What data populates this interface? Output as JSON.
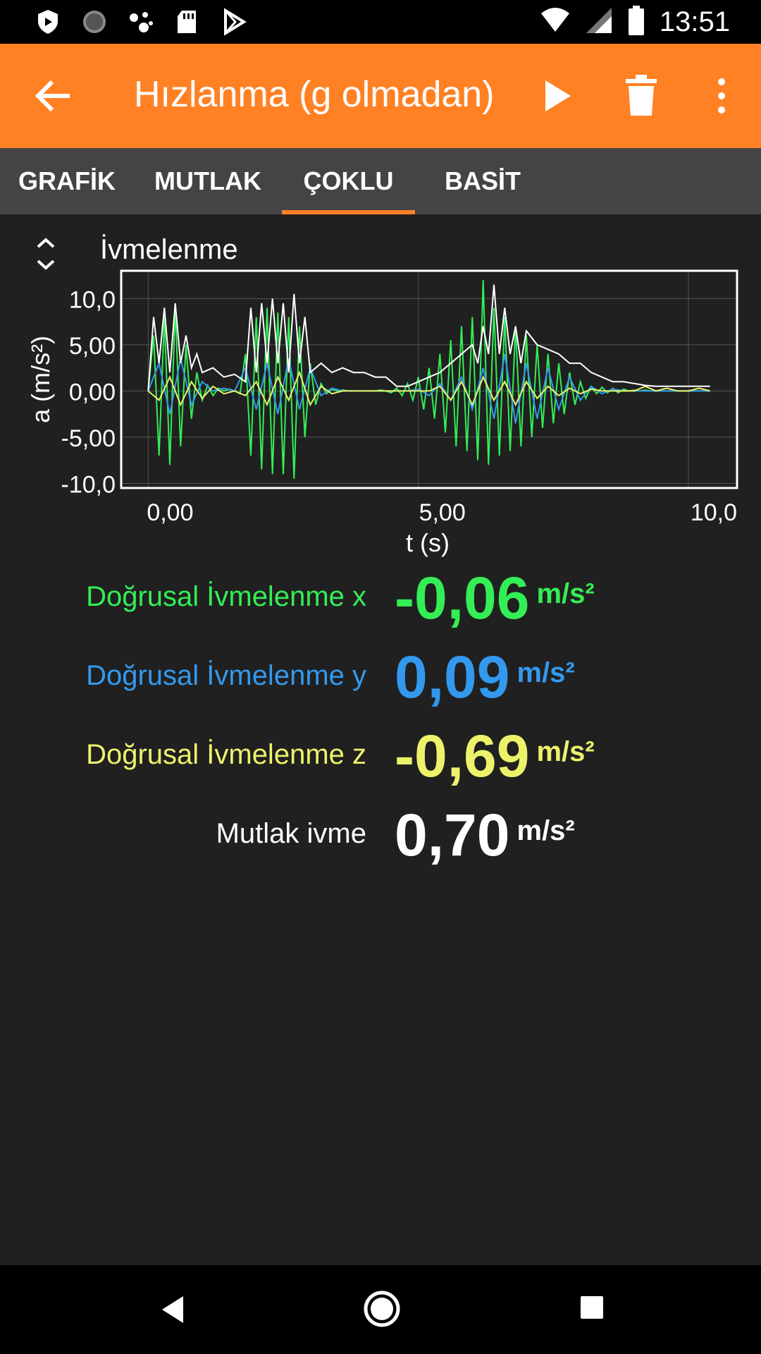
{
  "status": {
    "time": "13:51",
    "icons": [
      "shield-icon",
      "circle-loading-icon",
      "assistant-dots-icon",
      "sd-card-icon",
      "play-store-icon",
      "wifi-icon",
      "signal-icon",
      "battery-icon"
    ]
  },
  "appbar": {
    "title": "Hızlanma (g olmadan)",
    "icons": [
      "back-arrow-icon",
      "play-icon",
      "trash-icon",
      "more-vert-icon"
    ]
  },
  "tabs": [
    {
      "label": "GRAFİK",
      "active": false
    },
    {
      "label": "MUTLAK",
      "active": false
    },
    {
      "label": "ÇOKLU",
      "active": true
    },
    {
      "label": "BASİT",
      "active": false
    }
  ],
  "chart": {
    "title": "İvmelenme"
  },
  "chart_data": {
    "type": "line",
    "title": "İvmelenme",
    "xlabel": "t (s)",
    "ylabel": "a (m/s²)",
    "xlim": [
      -0.5,
      10.9
    ],
    "ylim": [
      -10.5,
      13
    ],
    "x_ticks": [
      0,
      5,
      10
    ],
    "x_tick_labels": [
      "0,00",
      "5,00",
      "10,0"
    ],
    "y_ticks": [
      10,
      5,
      0,
      -5,
      -10
    ],
    "y_tick_labels": [
      "10,0",
      "5,00",
      "0,00",
      "-5,00",
      "-10,0"
    ],
    "grid": true,
    "series": [
      {
        "name": "Doğrusal İvmelenme x",
        "color": "#33ee55",
        "x": [
          0.0,
          0.1,
          0.2,
          0.3,
          0.4,
          0.5,
          0.6,
          0.7,
          0.8,
          0.9,
          1.0,
          1.1,
          1.2,
          1.3,
          1.4,
          1.5,
          1.6,
          1.7,
          1.8,
          1.9,
          2.0,
          2.1,
          2.2,
          2.3,
          2.4,
          2.5,
          2.6,
          2.7,
          2.8,
          2.9,
          3.0,
          3.1,
          3.2,
          3.3,
          3.4,
          3.5,
          3.6,
          3.7,
          3.8,
          3.9,
          4.0,
          4.1,
          4.2,
          4.3,
          4.4,
          4.5,
          4.6,
          4.7,
          4.8,
          4.9,
          5.0,
          5.1,
          5.2,
          5.3,
          5.4,
          5.5,
          5.6,
          5.7,
          5.8,
          5.9,
          6.0,
          6.1,
          6.2,
          6.3,
          6.4,
          6.5,
          6.6,
          6.7,
          6.8,
          6.9,
          7.0,
          7.1,
          7.2,
          7.3,
          7.4,
          7.5,
          7.6,
          7.7,
          7.8,
          7.9,
          8.0,
          8.1,
          8.2,
          8.3,
          8.4,
          8.5,
          8.6,
          8.7,
          8.8,
          8.9,
          9.0,
          9.1,
          9.2,
          9.3,
          9.4,
          9.5,
          9.6,
          9.7,
          9.8,
          9.9,
          10.0,
          10.1,
          10.2,
          10.3,
          10.4
        ],
        "y": [
          0.0,
          6.0,
          -7.0,
          8.0,
          -8.0,
          9.0,
          -6.0,
          5.0,
          -3.0,
          2.0,
          -1.0,
          0.6,
          -0.5,
          0.3,
          0.0,
          0.2,
          0.0,
          -0.3,
          4.0,
          -7.0,
          8.0,
          -8.5,
          9.0,
          -9.0,
          8.5,
          -9.0,
          8.0,
          -9.5,
          7.0,
          -5.0,
          3.0,
          -1.5,
          0.8,
          -0.3,
          0.2,
          0.0,
          0.1,
          0.0,
          0.0,
          0.0,
          0.0,
          0.0,
          0.0,
          0.1,
          0.0,
          -0.2,
          0.3,
          -0.5,
          0.8,
          -1.0,
          1.5,
          -2.0,
          2.5,
          -3.0,
          4.0,
          -4.5,
          5.5,
          -6.0,
          7.0,
          -6.5,
          8.0,
          -7.5,
          12.0,
          -8.0,
          9.0,
          -7.0,
          8.0,
          -6.5,
          7.0,
          -6.0,
          6.0,
          -5.0,
          5.0,
          -4.0,
          4.0,
          -3.5,
          3.0,
          -2.5,
          2.0,
          -1.5,
          1.0,
          -0.8,
          0.5,
          -0.3,
          0.4,
          -0.2,
          0.3,
          -0.2,
          0.2,
          0.0,
          0.1,
          0.0,
          0.1,
          0.0,
          0.0,
          0.0,
          0.0,
          0.0,
          0.0,
          0.0,
          0.0,
          0.0,
          0.0,
          0.0,
          0.0
        ]
      },
      {
        "name": "Doğrusal İvmelenme y",
        "color": "#3399ee",
        "x": [
          0.0,
          0.2,
          0.4,
          0.6,
          0.8,
          1.0,
          1.2,
          1.4,
          1.6,
          1.8,
          2.0,
          2.2,
          2.4,
          2.6,
          2.8,
          3.0,
          3.2,
          3.4,
          3.6,
          3.8,
          4.0,
          4.2,
          4.4,
          4.6,
          4.8,
          5.0,
          5.2,
          5.4,
          5.6,
          5.8,
          6.0,
          6.2,
          6.4,
          6.6,
          6.8,
          7.0,
          7.2,
          7.4,
          7.6,
          7.8,
          8.0,
          8.2,
          8.4,
          8.6,
          8.8,
          9.0,
          9.2,
          9.4,
          9.6,
          9.8,
          10.0,
          10.2,
          10.4
        ],
        "y": [
          0.0,
          3.0,
          -2.5,
          3.5,
          -1.5,
          1.0,
          0.0,
          0.3,
          0.0,
          2.5,
          -2.0,
          3.0,
          -2.5,
          3.5,
          -2.0,
          2.5,
          -0.5,
          0.3,
          0.0,
          0.0,
          0.0,
          0.0,
          0.0,
          0.0,
          0.0,
          0.2,
          -0.5,
          0.8,
          -1.0,
          1.5,
          -2.0,
          2.5,
          -3.0,
          4.0,
          -3.5,
          3.0,
          -3.0,
          2.5,
          -2.0,
          1.5,
          -1.0,
          0.5,
          -0.3,
          0.2,
          0.0,
          0.0,
          0.0,
          0.0,
          0.0,
          0.0,
          0.0,
          0.0,
          0.0
        ]
      },
      {
        "name": "Doğrusal İvmelenme z",
        "color": "#ecf36a",
        "x": [
          0.0,
          0.2,
          0.4,
          0.6,
          0.8,
          1.0,
          1.2,
          1.4,
          1.6,
          1.8,
          2.0,
          2.2,
          2.4,
          2.6,
          2.8,
          3.0,
          3.2,
          3.4,
          3.6,
          3.8,
          4.0,
          4.2,
          4.4,
          4.6,
          4.8,
          5.0,
          5.2,
          5.4,
          5.6,
          5.8,
          6.0,
          6.2,
          6.4,
          6.6,
          6.8,
          7.0,
          7.2,
          7.4,
          7.6,
          7.8,
          8.0,
          8.2,
          8.4,
          8.6,
          8.8,
          9.0,
          9.2,
          9.4,
          9.6,
          9.8,
          10.0,
          10.2,
          10.4
        ],
        "y": [
          0.0,
          -1.0,
          1.5,
          -1.5,
          1.0,
          -0.8,
          0.5,
          -0.3,
          0.0,
          -0.5,
          1.0,
          -1.5,
          1.5,
          -1.0,
          2.0,
          -1.5,
          0.5,
          -0.3,
          0.0,
          0.0,
          0.0,
          0.0,
          0.0,
          0.0,
          0.0,
          0.0,
          0.0,
          0.5,
          -1.0,
          1.0,
          -1.5,
          1.5,
          -1.0,
          1.0,
          -1.5,
          1.0,
          -0.8,
          0.5,
          -0.5,
          0.3,
          -0.3,
          0.2,
          0.0,
          0.0,
          0.0,
          0.0,
          0.5,
          0.0,
          0.3,
          0.0,
          0.0,
          0.3,
          0.0
        ]
      },
      {
        "name": "Mutlak ivme",
        "color": "#ffffff",
        "x": [
          0.0,
          0.1,
          0.2,
          0.3,
          0.4,
          0.5,
          0.6,
          0.7,
          0.8,
          0.9,
          1.0,
          1.2,
          1.4,
          1.6,
          1.8,
          1.9,
          2.0,
          2.1,
          2.2,
          2.3,
          2.4,
          2.5,
          2.6,
          2.7,
          2.8,
          2.9,
          3.0,
          3.2,
          3.4,
          3.6,
          3.8,
          4.0,
          4.2,
          4.4,
          4.6,
          4.8,
          5.0,
          5.2,
          5.4,
          5.6,
          5.8,
          6.0,
          6.1,
          6.2,
          6.3,
          6.4,
          6.5,
          6.6,
          6.7,
          6.8,
          6.9,
          7.0,
          7.2,
          7.4,
          7.6,
          7.8,
          8.0,
          8.2,
          8.4,
          8.6,
          8.8,
          9.0,
          9.2,
          9.4,
          9.6,
          9.8,
          10.0,
          10.2,
          10.4
        ],
        "y": [
          0.0,
          8.0,
          3.0,
          9.0,
          2.0,
          9.5,
          3.0,
          6.0,
          2.5,
          4.0,
          2.0,
          2.5,
          1.5,
          1.8,
          1.0,
          9.0,
          2.0,
          9.5,
          3.0,
          10.0,
          3.0,
          9.5,
          2.0,
          10.5,
          3.0,
          8.0,
          2.0,
          3.0,
          2.0,
          2.5,
          2.0,
          2.0,
          1.5,
          1.5,
          0.5,
          0.5,
          1.0,
          1.5,
          2.0,
          3.0,
          4.0,
          5.0,
          3.0,
          7.0,
          4.0,
          11.5,
          4.0,
          9.0,
          4.0,
          7.0,
          3.0,
          6.5,
          5.0,
          4.5,
          4.0,
          3.0,
          3.0,
          2.0,
          1.5,
          1.0,
          1.0,
          0.8,
          0.6,
          0.5,
          0.5,
          0.5,
          0.5,
          0.5,
          0.5
        ]
      }
    ]
  },
  "readouts": [
    {
      "label": "Doğrusal İvmelenme x",
      "value": "-0,06",
      "unit": "m/s²",
      "color": "#33ee55"
    },
    {
      "label": "Doğrusal İvmelenme y",
      "value": "0,09",
      "unit": "m/s²",
      "color": "#3399ee"
    },
    {
      "label": "Doğrusal İvmelenme z",
      "value": "-0,69",
      "unit": "m/s²",
      "color": "#ecf36a"
    },
    {
      "label": "Mutlak ivme",
      "value": "0,70",
      "unit": "m/s²",
      "color": "#ffffff"
    }
  ],
  "colors": {
    "accent": "#ff8124",
    "background": "#202020",
    "tab_bar": "#444444"
  }
}
